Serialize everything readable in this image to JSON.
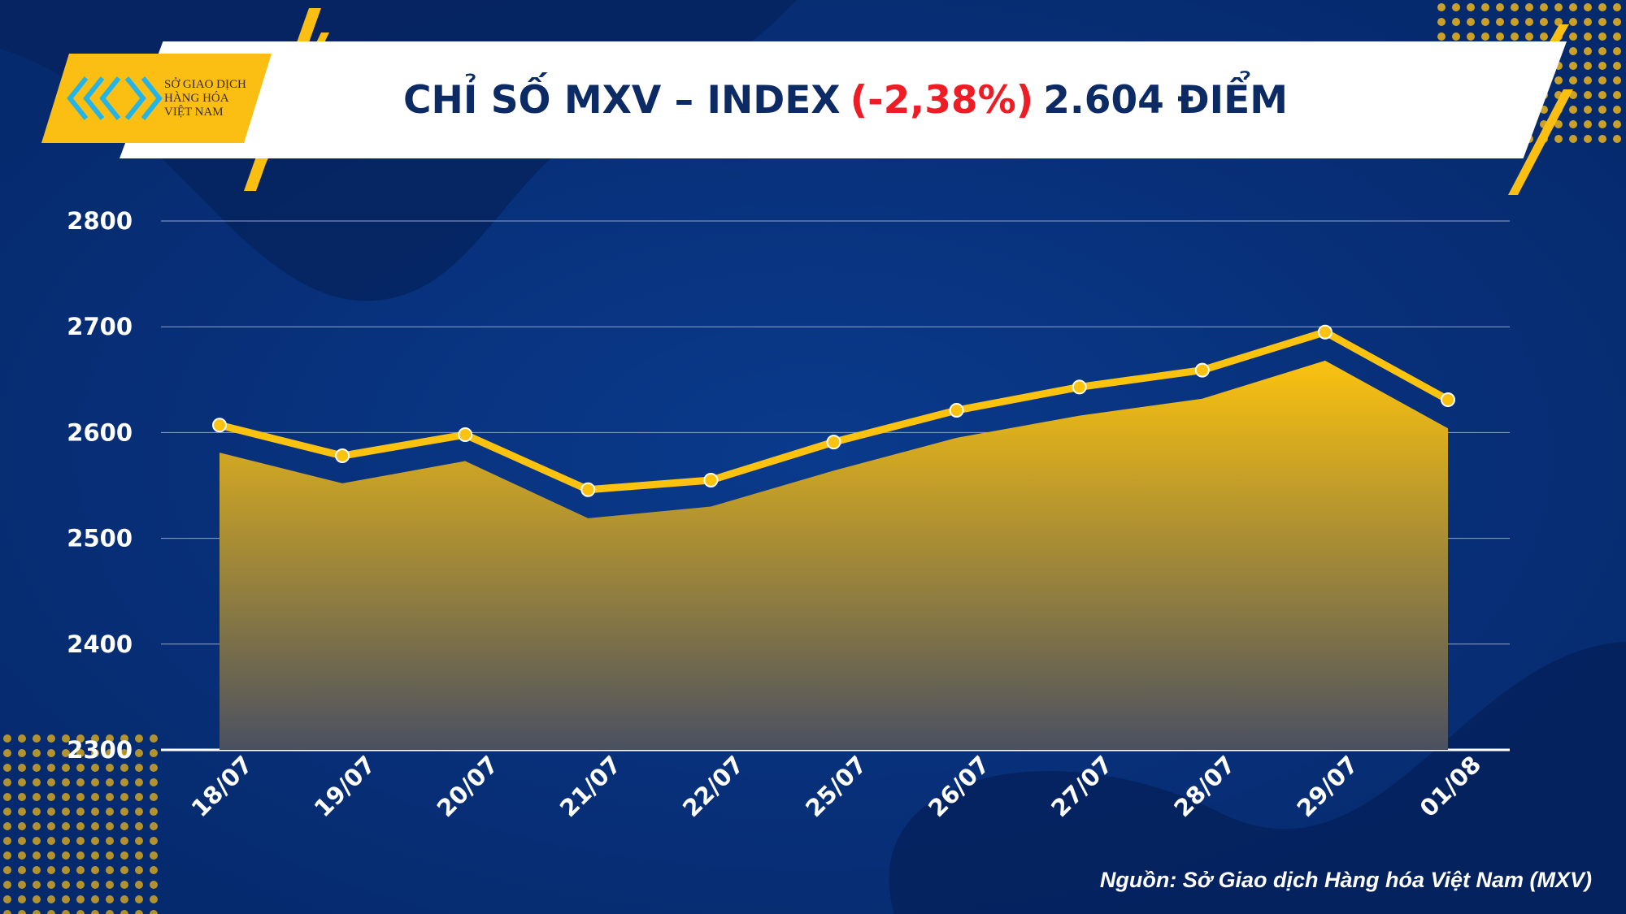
{
  "header": {
    "title_prefix": "CHỈ SỐ MXV – INDEX",
    "change": "(-2,38%)",
    "title_suffix": "2.604 ĐIỂM"
  },
  "logo": {
    "line1": "SỞ GIAO DỊCH",
    "line2": "HÀNG HÓA",
    "line3": "VIỆT NAM"
  },
  "source": "Nguồn: Sở Giao dịch Hàng hóa Việt Nam (MXV)",
  "colors": {
    "background": "#062a6e",
    "accent": "#fbbf14",
    "negative": "#ee1c25",
    "title": "#0c2a63"
  },
  "chart_data": {
    "type": "area",
    "categories": [
      "18/07",
      "19/07",
      "20/07",
      "21/07",
      "22/07",
      "25/07",
      "26/07",
      "27/07",
      "28/07",
      "29/07",
      "01/08"
    ],
    "series": [
      {
        "type": "area",
        "values": [
          2581,
          2552,
          2573,
          2519,
          2530,
          2564,
          2595,
          2616,
          2632,
          2668,
          2604
        ]
      },
      {
        "type": "line",
        "values": [
          2607,
          2578,
          2598,
          2546,
          2555,
          2591,
          2621,
          2643,
          2659,
          2695,
          2631
        ]
      }
    ],
    "yticks": [
      "2300",
      "2400",
      "2500",
      "2600",
      "2700",
      "2800"
    ],
    "ylim": [
      2300,
      2800
    ],
    "grid": true,
    "legend": "none"
  }
}
